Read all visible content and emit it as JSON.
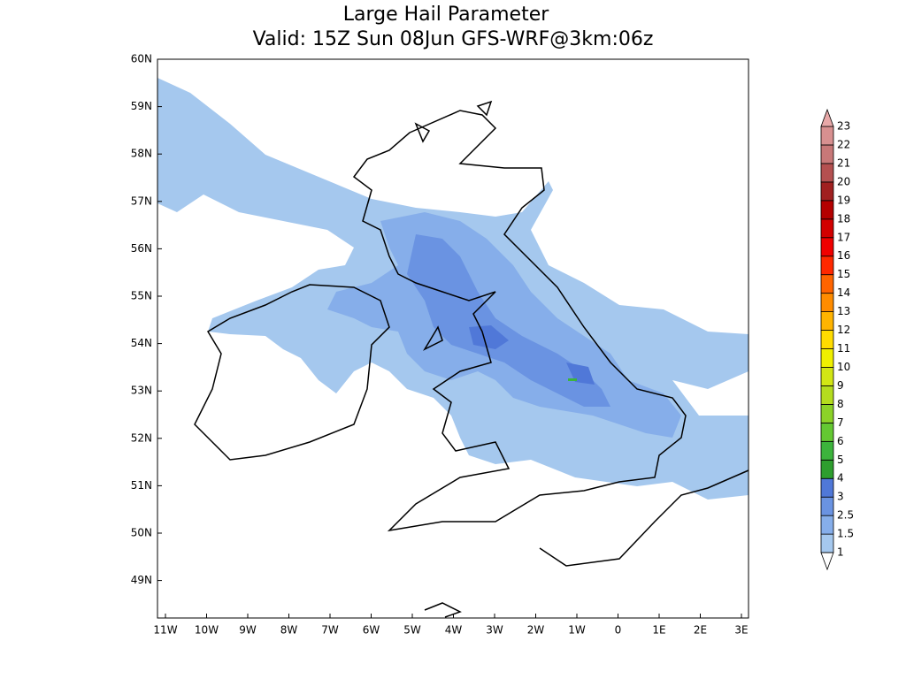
{
  "title": [
    "Large Hail Parameter",
    "Valid: 15Z Sun 08Jun GFS-WRF@3km:06z"
  ],
  "lon_labels": [
    "11W",
    "10W",
    "9W",
    "8W",
    "7W",
    "6W",
    "5W",
    "4W",
    "3W",
    "2W",
    "1W",
    "0",
    "1E",
    "2E",
    "3E"
  ],
  "lat_labels": [
    "60N",
    "59N",
    "58N",
    "57N",
    "56N",
    "55N",
    "54N",
    "53N",
    "52N",
    "51N",
    "50N",
    "49N"
  ],
  "colorbar": {
    "levels": [
      1,
      1.5,
      2.5,
      3,
      4,
      5,
      6,
      7,
      8,
      9,
      10,
      11,
      12,
      13,
      14,
      15,
      16,
      17,
      18,
      19,
      20,
      21,
      22,
      23
    ],
    "colors": [
      "#a5c8ee",
      "#86aeea",
      "#6a93e2",
      "#5078d8",
      "#2e9e2e",
      "#3cb43c",
      "#64c832",
      "#8cd228",
      "#b4dc1e",
      "#d2e614",
      "#f0f000",
      "#ffdc00",
      "#ffb400",
      "#ff8c00",
      "#ff6400",
      "#ff2800",
      "#f00000",
      "#d20000",
      "#b40000",
      "#a02020",
      "#b45050",
      "#c87878",
      "#d89090",
      "#e8a8a8"
    ]
  }
}
